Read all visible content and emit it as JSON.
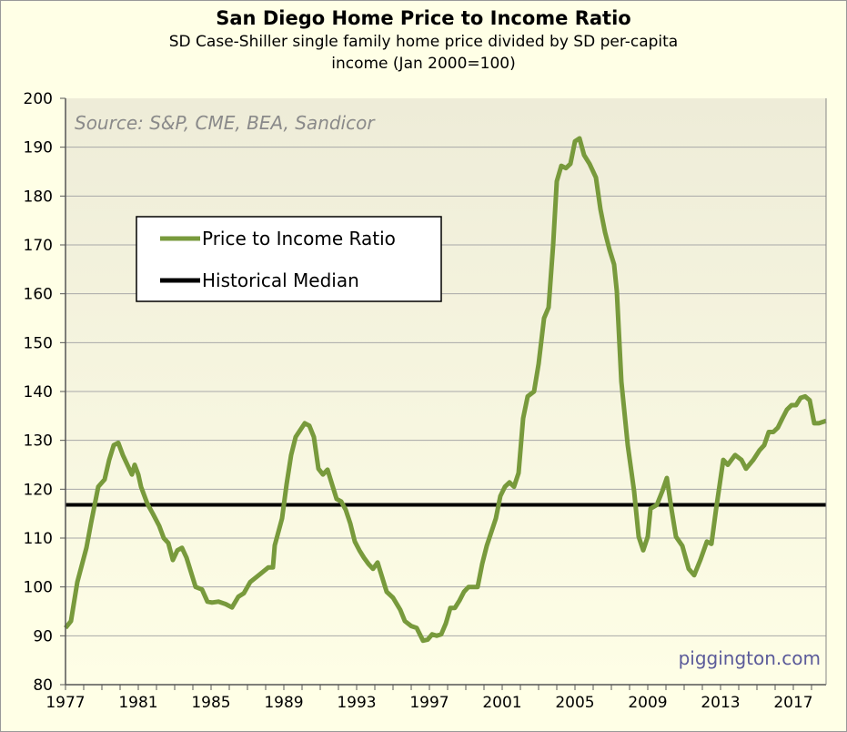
{
  "chart_data": {
    "type": "line",
    "title": "San Diego Home Price to Income Ratio",
    "subtitle_line1": "SD Case-Shiller single family home price divided by SD per-capita",
    "subtitle_line2": "income (Jan 2000=100)",
    "source": "Source: S&P, CME, BEA, Sandicor",
    "watermark": "piggington.com",
    "xlabel": "",
    "ylabel": "",
    "xlim": [
      1977,
      2018.8
    ],
    "ylim": [
      80,
      200
    ],
    "grid": true,
    "legend_placement": "top-left",
    "x_ticks": [
      "1977",
      "1981",
      "1985",
      "1989",
      "1993",
      "1997",
      "2001",
      "2005",
      "2009",
      "2013",
      "2017"
    ],
    "y_ticks": [
      "80",
      "90",
      "100",
      "110",
      "120",
      "130",
      "140",
      "150",
      "160",
      "170",
      "180",
      "190",
      "200"
    ],
    "colors": {
      "ratio": "#789a3c",
      "median": "#000000"
    },
    "series": [
      {
        "name": "Price to Income Ratio",
        "points": [
          [
            1977.0,
            91.6
          ],
          [
            1977.3,
            93
          ],
          [
            1977.65,
            101
          ],
          [
            1978.15,
            108
          ],
          [
            1978.4,
            113
          ],
          [
            1978.8,
            120.5
          ],
          [
            1979.15,
            122
          ],
          [
            1979.4,
            126
          ],
          [
            1979.65,
            129
          ],
          [
            1979.9,
            129.5
          ],
          [
            1980.15,
            127
          ],
          [
            1980.4,
            125
          ],
          [
            1980.65,
            123
          ],
          [
            1980.8,
            125
          ],
          [
            1981.0,
            123
          ],
          [
            1981.15,
            120.5
          ],
          [
            1981.5,
            117
          ],
          [
            1981.8,
            115
          ],
          [
            1982.15,
            112.5
          ],
          [
            1982.4,
            110
          ],
          [
            1982.65,
            109
          ],
          [
            1982.9,
            105.5
          ],
          [
            1983.15,
            107.5
          ],
          [
            1983.4,
            108
          ],
          [
            1983.65,
            106
          ],
          [
            1983.9,
            103
          ],
          [
            1984.15,
            100
          ],
          [
            1984.5,
            99.5
          ],
          [
            1984.8,
            97
          ],
          [
            1985.05,
            96.8
          ],
          [
            1985.4,
            97
          ],
          [
            1985.8,
            96.5
          ],
          [
            1986.15,
            95.8
          ],
          [
            1986.5,
            98
          ],
          [
            1986.8,
            98.7
          ],
          [
            1987.15,
            101
          ],
          [
            1987.65,
            102.5
          ],
          [
            1988.15,
            104
          ],
          [
            1988.4,
            104
          ],
          [
            1988.5,
            108.5
          ],
          [
            1988.9,
            114
          ],
          [
            1989.15,
            121
          ],
          [
            1989.4,
            127
          ],
          [
            1989.65,
            130.7
          ],
          [
            1990.15,
            133.5
          ],
          [
            1990.4,
            133
          ],
          [
            1990.65,
            130.7
          ],
          [
            1990.9,
            124.2
          ],
          [
            1991.15,
            123
          ],
          [
            1991.4,
            124
          ],
          [
            1991.65,
            121
          ],
          [
            1991.9,
            118
          ],
          [
            1992.15,
            117.5
          ],
          [
            1992.4,
            115.8
          ],
          [
            1992.65,
            113
          ],
          [
            1992.9,
            109.3
          ],
          [
            1993.15,
            107.5
          ],
          [
            1993.4,
            106
          ],
          [
            1993.65,
            104.7
          ],
          [
            1993.9,
            103.7
          ],
          [
            1994.15,
            105
          ],
          [
            1994.4,
            102
          ],
          [
            1994.65,
            99
          ],
          [
            1995.0,
            97.8
          ],
          [
            1995.4,
            95.3
          ],
          [
            1995.65,
            93
          ],
          [
            1996.0,
            92
          ],
          [
            1996.3,
            91.6
          ],
          [
            1996.65,
            89
          ],
          [
            1996.9,
            89.2
          ],
          [
            1997.15,
            90.3
          ],
          [
            1997.4,
            90
          ],
          [
            1997.65,
            90.3
          ],
          [
            1997.9,
            92.5
          ],
          [
            1998.15,
            95.7
          ],
          [
            1998.4,
            95.7
          ],
          [
            1998.65,
            97.2
          ],
          [
            1998.9,
            99
          ],
          [
            1999.15,
            100
          ],
          [
            1999.4,
            100
          ],
          [
            1999.65,
            100
          ],
          [
            1999.9,
            104.7
          ],
          [
            2000.15,
            108.4
          ],
          [
            2000.4,
            111.2
          ],
          [
            2000.65,
            114
          ],
          [
            2000.9,
            118.6
          ],
          [
            2001.15,
            120.5
          ],
          [
            2001.4,
            121.4
          ],
          [
            2001.65,
            120.5
          ],
          [
            2001.9,
            123.3
          ],
          [
            2002.15,
            134.5
          ],
          [
            2002.4,
            139
          ],
          [
            2002.75,
            140
          ],
          [
            2003.0,
            145.6
          ],
          [
            2003.3,
            155
          ],
          [
            2003.55,
            157.2
          ],
          [
            2003.8,
            170
          ],
          [
            2004.0,
            183
          ],
          [
            2004.25,
            186.2
          ],
          [
            2004.5,
            185.7
          ],
          [
            2004.75,
            186.6
          ],
          [
            2005.0,
            191.2
          ],
          [
            2005.25,
            191.8
          ],
          [
            2005.5,
            188.4
          ],
          [
            2005.8,
            186.6
          ],
          [
            2006.15,
            183.8
          ],
          [
            2006.4,
            177.3
          ],
          [
            2006.65,
            172.6
          ],
          [
            2006.9,
            169
          ],
          [
            2007.15,
            166
          ],
          [
            2007.3,
            160.5
          ],
          [
            2007.55,
            142
          ],
          [
            2007.9,
            129
          ],
          [
            2008.25,
            119.6
          ],
          [
            2008.5,
            110.3
          ],
          [
            2008.75,
            107.5
          ],
          [
            2009.0,
            110.3
          ],
          [
            2009.15,
            116
          ],
          [
            2009.5,
            116.8
          ],
          [
            2009.8,
            119.6
          ],
          [
            2010.05,
            122.3
          ],
          [
            2010.3,
            116
          ],
          [
            2010.55,
            110.3
          ],
          [
            2010.9,
            108.4
          ],
          [
            2011.25,
            103.7
          ],
          [
            2011.55,
            102.4
          ],
          [
            2011.9,
            105.6
          ],
          [
            2012.25,
            109.3
          ],
          [
            2012.5,
            108.8
          ],
          [
            2012.75,
            115.8
          ],
          [
            2013.15,
            126
          ],
          [
            2013.4,
            125
          ],
          [
            2013.8,
            127
          ],
          [
            2014.15,
            126
          ],
          [
            2014.4,
            124.2
          ],
          [
            2014.8,
            126
          ],
          [
            2015.15,
            128
          ],
          [
            2015.4,
            129
          ],
          [
            2015.65,
            131.7
          ],
          [
            2015.9,
            131.7
          ],
          [
            2016.15,
            132.6
          ],
          [
            2016.4,
            134.5
          ],
          [
            2016.65,
            136.3
          ],
          [
            2016.9,
            137.2
          ],
          [
            2017.15,
            137.2
          ],
          [
            2017.4,
            138.7
          ],
          [
            2017.65,
            139
          ],
          [
            2017.9,
            138.2
          ],
          [
            2018.15,
            133.5
          ],
          [
            2018.4,
            133.5
          ],
          [
            2018.8,
            134
          ]
        ]
      },
      {
        "name": "Historical Median",
        "value": 116.8
      }
    ]
  }
}
